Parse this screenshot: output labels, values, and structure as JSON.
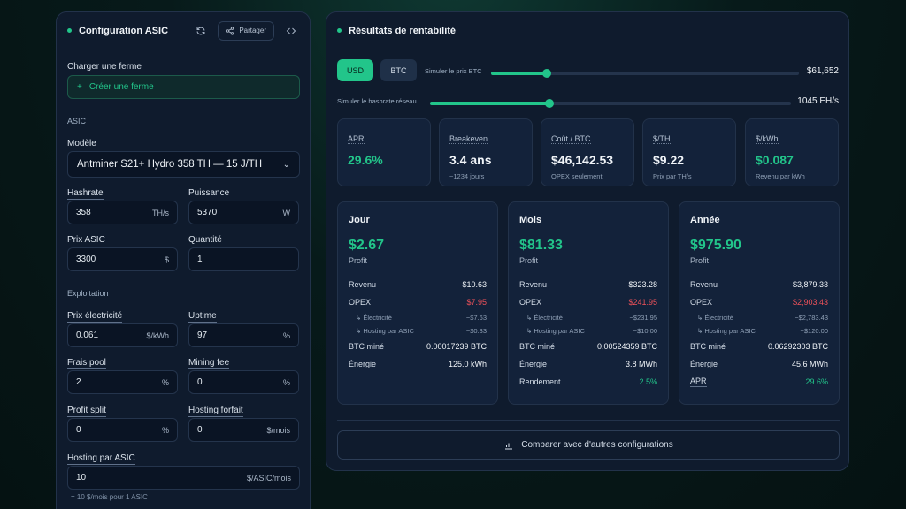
{
  "config": {
    "title": "Configuration ASIC",
    "share_label": "Partager",
    "load_farm_label": "Charger une ferme",
    "create_farm_label": "Créer une ferme",
    "asic_section": "ASIC",
    "model_label": "Modèle",
    "model_value": "Antminer S21+ Hydro 358 TH — 15 J/TH",
    "hashrate_label": "Hashrate",
    "hashrate_value": "358",
    "hashrate_unit": "TH/s",
    "power_label": "Puissance",
    "power_value": "5370",
    "power_unit": "W",
    "price_label": "Prix ASIC",
    "price_value": "3300",
    "price_unit": "$",
    "qty_label": "Quantité",
    "qty_value": "1",
    "ops_section": "Exploitation",
    "elec_label": "Prix électricité",
    "elec_value": "0.061",
    "elec_unit": "$/kWh",
    "uptime_label": "Uptime",
    "uptime_value": "97",
    "uptime_unit": "%",
    "pool_label": "Frais pool",
    "pool_value": "2",
    "pool_unit": "%",
    "mining_fee_label": "Mining fee",
    "mining_fee_value": "0",
    "mining_fee_unit": "%",
    "profit_split_label": "Profit split",
    "profit_split_value": "0",
    "profit_split_unit": "%",
    "hosting_flat_label": "Hosting forfait",
    "hosting_flat_value": "0",
    "hosting_flat_unit": "$/mois",
    "hosting_asic_label": "Hosting par ASIC",
    "hosting_asic_value": "10",
    "hosting_asic_unit": "$/ASIC/mois",
    "hosting_note": "= 10 $/mois pour 1 ASIC"
  },
  "results": {
    "title": "Résultats de rentabilité",
    "currency_usd": "USD",
    "currency_btc": "BTC",
    "btc_price_label": "Simuler le prix BTC",
    "btc_price_value": "$61,652",
    "btc_price_slider": 0.18,
    "hashrate_label": "Simuler le hashrate réseau",
    "hashrate_value": "1045 EH/s",
    "hashrate_slider": 0.33,
    "kpis": [
      {
        "label": "APR",
        "value": "29.6%",
        "sub": ""
      },
      {
        "label": "Breakeven",
        "value": "3.4 ans",
        "sub": "~1234 jours"
      },
      {
        "label": "Coût / BTC",
        "value": "$46,142.53",
        "sub": "OPEX seulement"
      },
      {
        "label": "$/TH",
        "value": "$9.22",
        "sub": "Prix par TH/s"
      },
      {
        "label": "$/kWh",
        "value": "$0.087",
        "sub": "Revenu par kWh"
      }
    ],
    "periods": [
      {
        "title": "Jour",
        "profit": "$2.67",
        "profit_label": "Profit",
        "revenue_label": "Revenu",
        "revenue": "$10.63",
        "opex_label": "OPEX",
        "opex": "$7.95",
        "elec_label": "↳ Électricité",
        "elec": "−$7.63",
        "hosting_label": "↳ Hosting par ASIC",
        "hosting": "−$0.33",
        "btc_label": "BTC miné",
        "btc": "0.00017239 BTC",
        "energy_label": "Énergie",
        "energy": "125.0 kWh",
        "extra_label": "",
        "extra": ""
      },
      {
        "title": "Mois",
        "profit": "$81.33",
        "profit_label": "Profit",
        "revenue_label": "Revenu",
        "revenue": "$323.28",
        "opex_label": "OPEX",
        "opex": "$241.95",
        "elec_label": "↳ Électricité",
        "elec": "−$231.95",
        "hosting_label": "↳ Hosting par ASIC",
        "hosting": "−$10.00",
        "btc_label": "BTC miné",
        "btc": "0.00524359 BTC",
        "energy_label": "Énergie",
        "energy": "3.8 MWh",
        "extra_label": "Rendement",
        "extra": "2.5%"
      },
      {
        "title": "Année",
        "profit": "$975.90",
        "profit_label": "Profit",
        "revenue_label": "Revenu",
        "revenue": "$3,879.33",
        "opex_label": "OPEX",
        "opex": "$2,903.43",
        "elec_label": "↳ Électricité",
        "elec": "−$2,783.43",
        "hosting_label": "↳ Hosting par ASIC",
        "hosting": "−$120.00",
        "btc_label": "BTC miné",
        "btc": "0.06292303 BTC",
        "energy_label": "Énergie",
        "energy": "45.6 MWh",
        "extra_label": "APR",
        "extra": "29.6%"
      }
    ],
    "compare_label": "Comparer avec d'autres configurations"
  }
}
